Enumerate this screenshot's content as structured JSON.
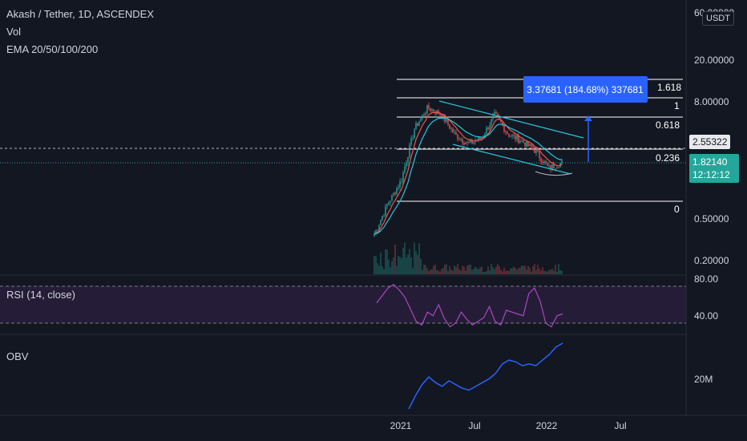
{
  "main_pane": {
    "title": "Akash / Tether, 1D, ASCENDEX",
    "vol_label": "Vol",
    "ema_label": "EMA 20/50/100/200"
  },
  "currency": "USDT",
  "price_axis": [
    "60.00000",
    "20.00000",
    "8.00000",
    "0.50000",
    "0.20000"
  ],
  "price_tags": {
    "dashed_level": "2.55322",
    "last_price": "1.82140",
    "countdown": "12:12:12"
  },
  "measure_label": "3.37681 (184.68%) 337681",
  "fib_levels": [
    "1.618",
    "1",
    "0.618",
    "0.236",
    "0"
  ],
  "rsi": {
    "label": "RSI (14, close)",
    "axis": [
      "80.00",
      "40.00"
    ]
  },
  "obv": {
    "label": "OBV",
    "axis": [
      "20M"
    ]
  },
  "time_axis": [
    "2021",
    "Jul",
    "2022",
    "Jul"
  ],
  "colors": {
    "background": "#131722",
    "up_candle": "#26a69a",
    "down_candle": "#ef5350",
    "fib_line": "#ffffff",
    "channel": "#26c6da",
    "measure": "#2962ff",
    "rsi_line": "#ab47bc",
    "rsi_band": "#2a1f3d",
    "obv_line": "#2962ff",
    "last_price_tag": "#26a69a"
  },
  "chart_data": [
    {
      "type": "line",
      "title": "Akash / Tether, 1D, ASCENDEX",
      "x": [
        "2020-12",
        "2021-01",
        "2021-02",
        "2021-03",
        "2021-04",
        "2021-05",
        "2021-06",
        "2021-07",
        "2021-08",
        "2021-09",
        "2021-10",
        "2021-11",
        "2021-12",
        "2022-01",
        "2022-02"
      ],
      "series": [
        {
          "name": "Akash / Tether",
          "values": [
            0.35,
            0.7,
            1.2,
            4.0,
            6.5,
            5.5,
            3.5,
            2.8,
            3.2,
            5.5,
            3.5,
            3.0,
            2.4,
            1.6,
            1.82
          ]
        }
      ],
      "yscale": "log",
      "ylim": [
        0.15,
        60
      ]
    },
    {
      "type": "line",
      "title": "RSI (14, close)",
      "series": [
        {
          "name": "RSI (14, close)",
          "values": [
            62,
            70,
            78,
            82,
            76,
            68,
            55,
            42,
            38,
            52,
            48,
            60,
            45,
            36,
            40,
            52,
            44,
            38,
            42,
            46,
            58,
            42,
            38,
            54,
            52,
            50,
            48,
            72,
            78,
            64,
            40,
            36,
            48,
            50
          ]
        }
      ],
      "ylim": [
        30,
        85
      ]
    },
    {
      "type": "line",
      "title": "OBV",
      "series": [
        {
          "name": "OBV",
          "values": [
            5,
            12,
            18,
            22,
            19,
            17,
            20,
            18,
            16,
            15,
            17,
            19,
            21,
            24,
            29,
            31,
            30,
            28,
            29,
            28,
            31,
            34,
            38,
            40
          ]
        }
      ]
    }
  ]
}
